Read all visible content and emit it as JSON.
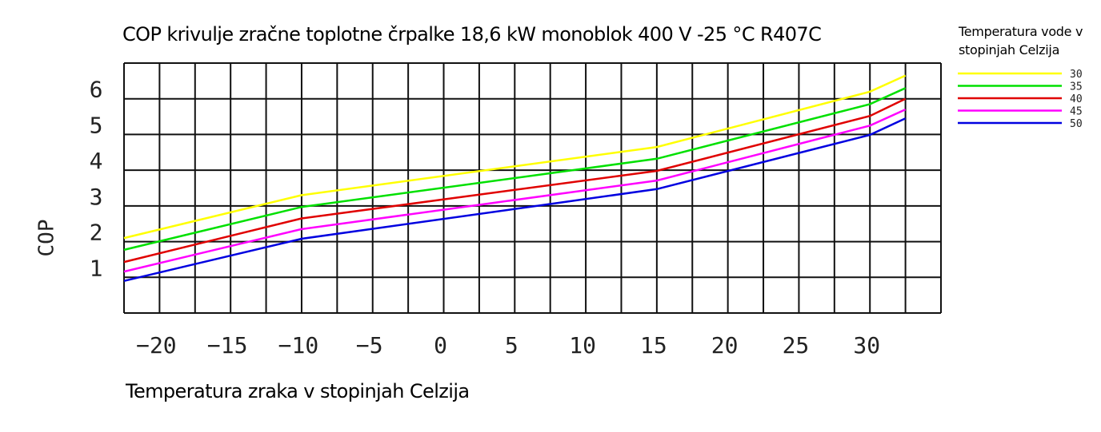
{
  "chart_data": {
    "type": "line",
    "title": "COP krivulje zračne toplotne črpalke 18,6 kW monoblok 400 V -25 °C R407C",
    "xlabel": "Temperatura zraka v stopinjah Celzija",
    "ylabel": "COP",
    "legend_title": "Temperatura vode v stopinjah Celzija",
    "legend_position": "top-right",
    "grid": true,
    "xlim": [
      -22.5,
      35
    ],
    "ylim": [
      0,
      7
    ],
    "x_ticks": [
      "-20",
      "-15",
      "-10",
      "-5",
      "0",
      "5",
      "10",
      "15",
      "20",
      "25",
      "30"
    ],
    "y_ticks": [
      "1",
      "2",
      "3",
      "4",
      "5",
      "6"
    ],
    "x": [
      -22.5,
      -10,
      15,
      30,
      32.5
    ],
    "series": [
      {
        "name": "30",
        "color": "#ffff00",
        "values": [
          2.1,
          3.3,
          4.65,
          6.2,
          6.65
        ]
      },
      {
        "name": "35",
        "color": "#00e000",
        "values": [
          1.77,
          2.97,
          4.32,
          5.85,
          6.3
        ]
      },
      {
        "name": "40",
        "color": "#e00000",
        "values": [
          1.43,
          2.65,
          3.98,
          5.52,
          6.0
        ]
      },
      {
        "name": "45",
        "color": "#ff00ff",
        "values": [
          1.16,
          2.35,
          3.71,
          5.25,
          5.7
        ]
      },
      {
        "name": "50",
        "color": "#0000e0",
        "values": [
          0.9,
          2.08,
          3.47,
          4.99,
          5.45
        ]
      }
    ]
  }
}
